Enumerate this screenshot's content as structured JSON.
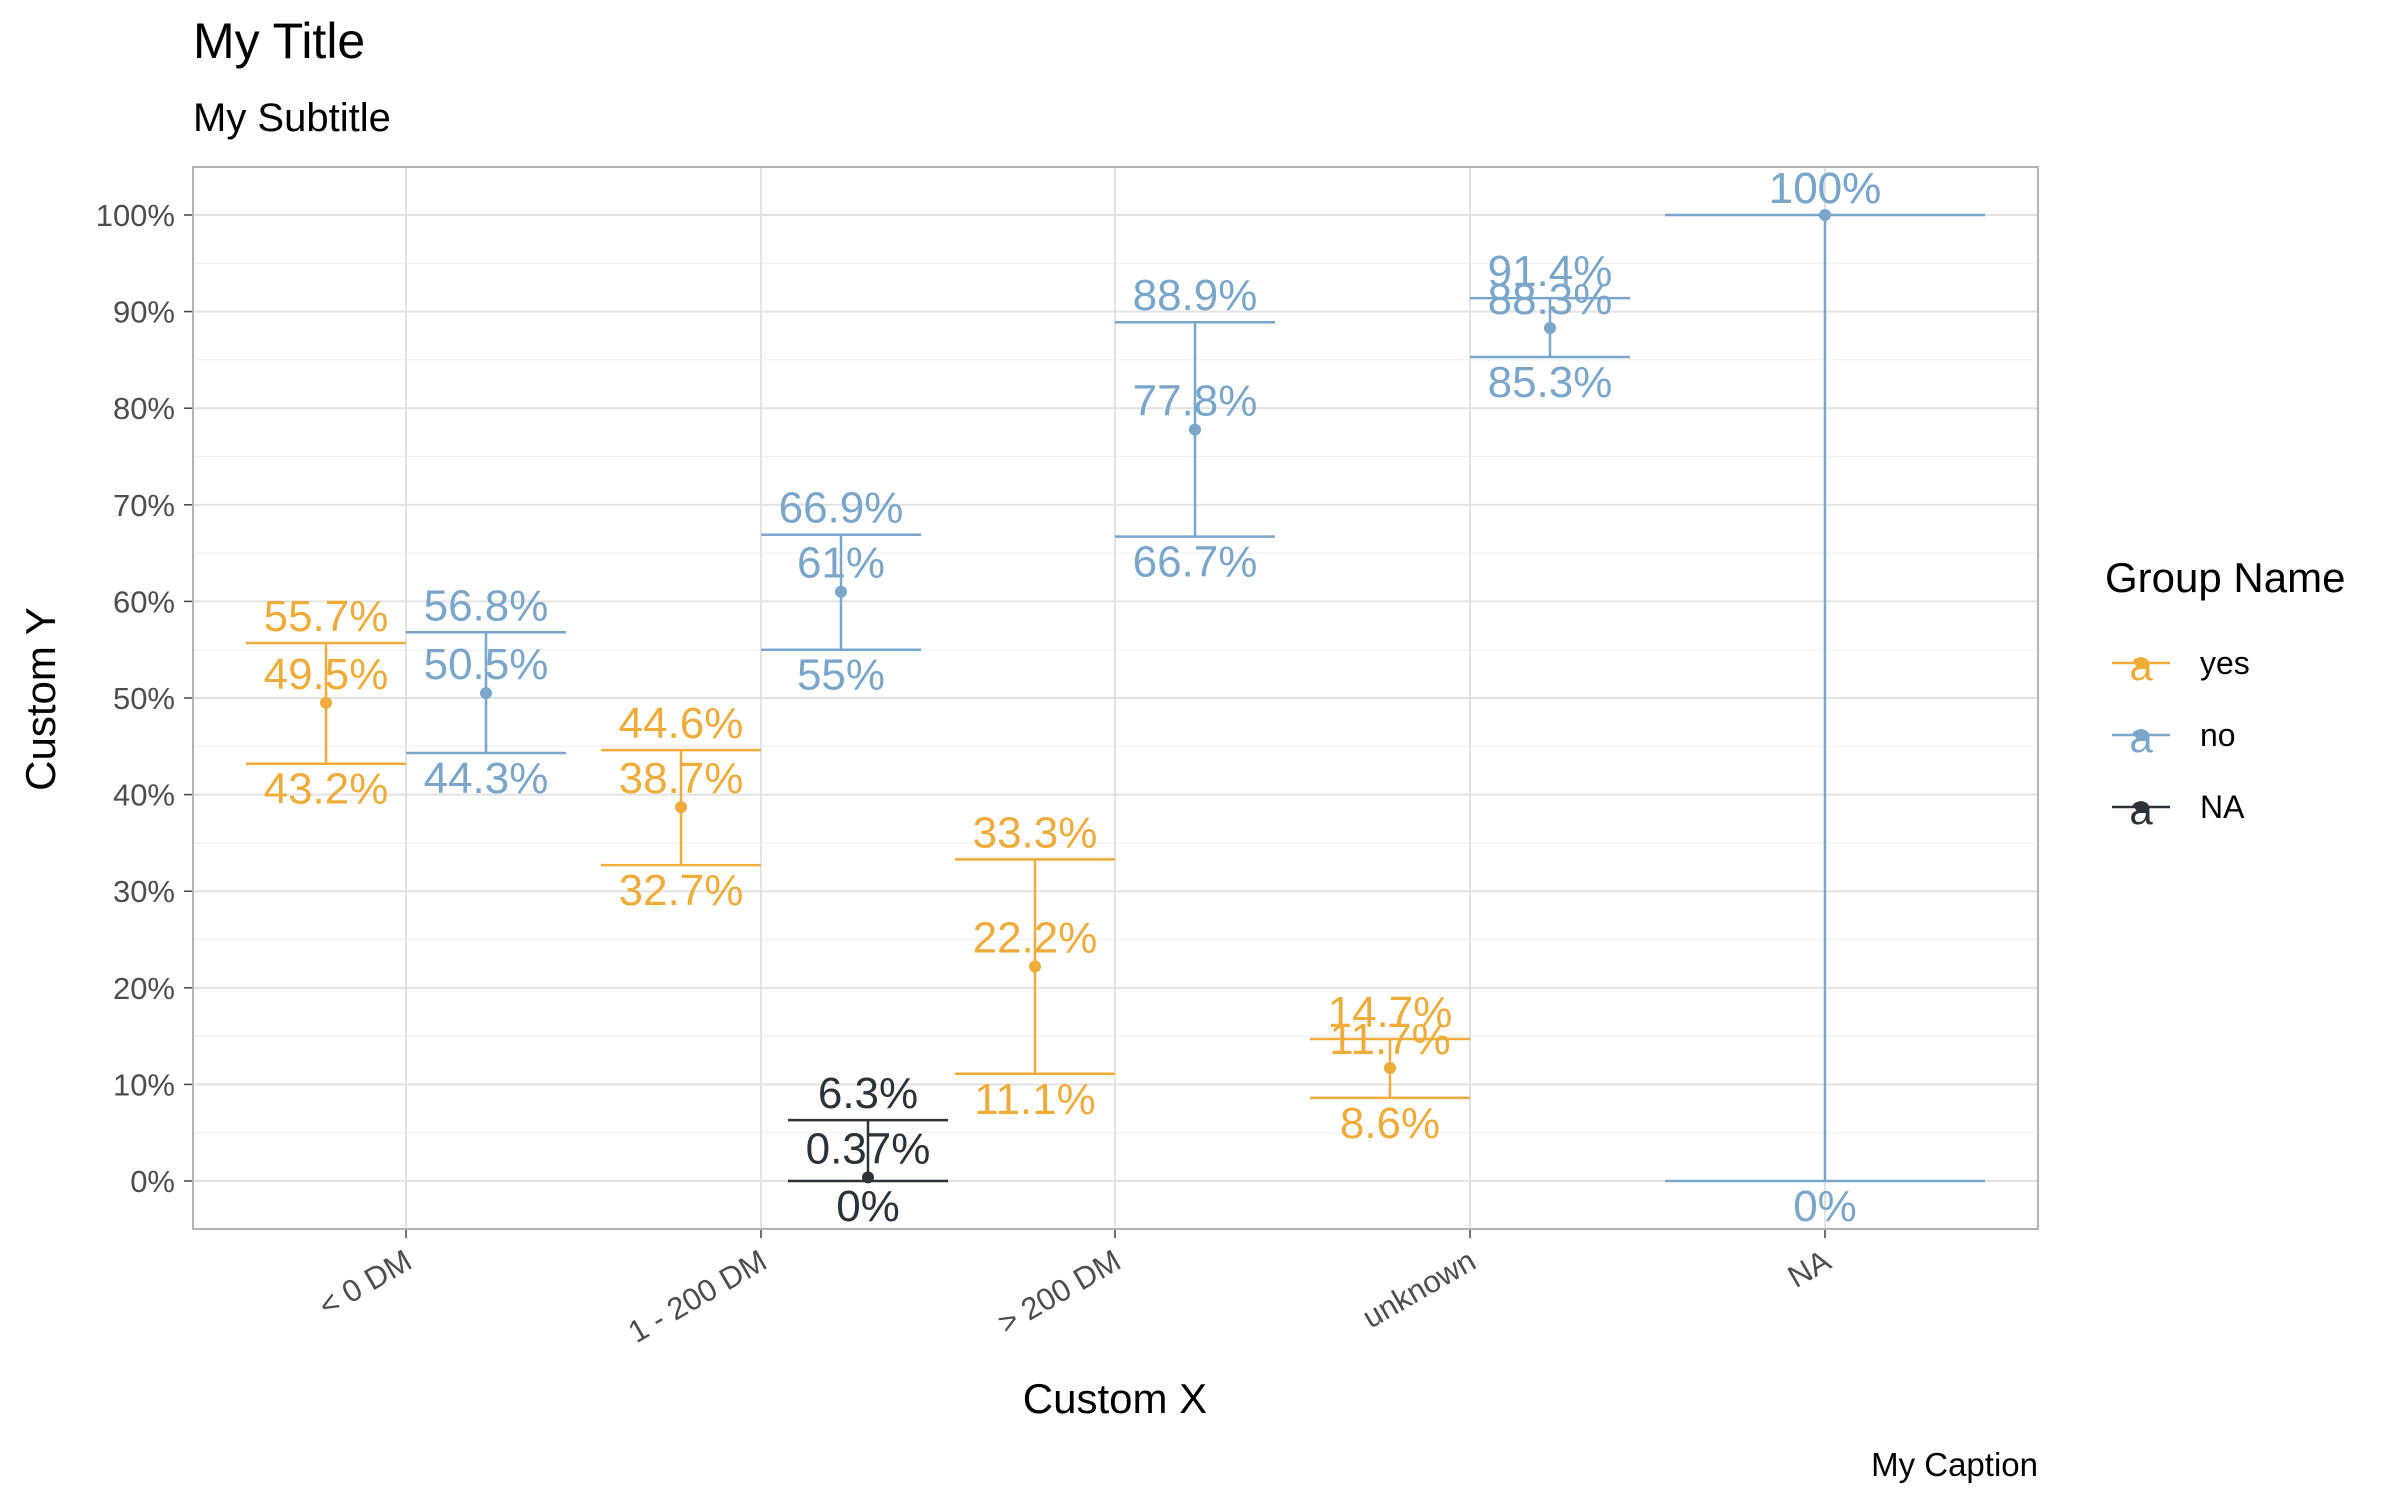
{
  "chart_data": {
    "type": "errorbar",
    "title": "My Title",
    "subtitle": "My Subtitle",
    "caption": "My Caption",
    "xlabel": "Custom X",
    "ylabel": "Custom Y",
    "categories": [
      "< 0 DM",
      "1 - 200 DM",
      "> 200 DM",
      "unknown",
      "NA"
    ],
    "y_ticks": [
      0,
      10,
      20,
      30,
      40,
      50,
      60,
      70,
      80,
      90,
      100
    ],
    "y_tick_labels": [
      "0%",
      "10%",
      "20%",
      "30%",
      "40%",
      "50%",
      "60%",
      "70%",
      "80%",
      "90%",
      "100%"
    ],
    "ylim": [
      -5,
      105
    ],
    "grid": true,
    "legend": {
      "title": "Group Name",
      "position": "right",
      "glyph": "a",
      "entries": [
        "yes",
        "no",
        "NA"
      ]
    },
    "series": [
      {
        "name": "yes",
        "color": "#EFAC3A",
        "points": [
          {
            "category": "< 0 DM",
            "estimate": 49.5,
            "lower": 43.2,
            "upper": 55.7,
            "estimate_label": "49.5%",
            "lower_label": "43.2%",
            "upper_label": "55.7%"
          },
          {
            "category": "1 - 200 DM",
            "estimate": 38.7,
            "lower": 32.7,
            "upper": 44.6,
            "estimate_label": "38.7%",
            "lower_label": "32.7%",
            "upper_label": "44.6%"
          },
          {
            "category": "> 200 DM",
            "estimate": 22.2,
            "lower": 11.1,
            "upper": 33.3,
            "estimate_label": "22.2%",
            "lower_label": "11.1%",
            "upper_label": "33.3%"
          },
          {
            "category": "unknown",
            "estimate": 11.7,
            "lower": 8.6,
            "upper": 14.7,
            "estimate_label": "11.7%",
            "lower_label": "8.6%",
            "upper_label": "14.7%"
          }
        ]
      },
      {
        "name": "no",
        "color": "#7AA6CB",
        "points": [
          {
            "category": "< 0 DM",
            "estimate": 50.5,
            "lower": 44.3,
            "upper": 56.8,
            "estimate_label": "50.5%",
            "lower_label": "44.3%",
            "upper_label": "56.8%"
          },
          {
            "category": "1 - 200 DM",
            "estimate": 61,
            "lower": 55,
            "upper": 66.9,
            "estimate_label": "61%",
            "lower_label": "55%",
            "upper_label": "66.9%"
          },
          {
            "category": "> 200 DM",
            "estimate": 77.8,
            "lower": 66.7,
            "upper": 88.9,
            "estimate_label": "77.8%",
            "lower_label": "66.7%",
            "upper_label": "88.9%"
          },
          {
            "category": "unknown",
            "estimate": 88.3,
            "lower": 85.3,
            "upper": 91.4,
            "estimate_label": "88.3%",
            "lower_label": "85.3%",
            "upper_label": "91.4%"
          },
          {
            "category": "NA",
            "estimate": 100,
            "lower": 0,
            "upper": 100,
            "estimate_label": "100%",
            "lower_label": "0%",
            "upper_label": "100%"
          }
        ]
      },
      {
        "name": "NA",
        "color": "#2B3338",
        "points": [
          {
            "category": "1 - 200 DM",
            "estimate": 0.37,
            "lower": 0,
            "upper": 6.3,
            "estimate_label": "0.37%",
            "lower_label": "0%",
            "upper_label": "6.3%"
          }
        ]
      }
    ]
  }
}
